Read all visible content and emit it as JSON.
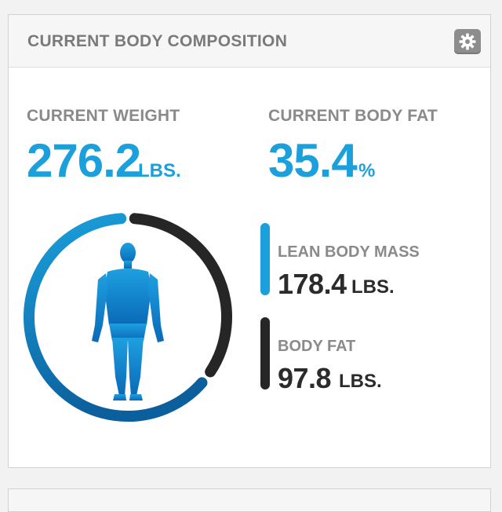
{
  "card": {
    "title": "CURRENT BODY COMPOSITION",
    "settings_icon": "gear-icon"
  },
  "current_weight": {
    "label": "CURRENT WEIGHT",
    "value": "276.2",
    "unit": "LBS."
  },
  "current_body_fat": {
    "label": "CURRENT BODY FAT",
    "value": "35.4",
    "unit": "%"
  },
  "lean_body_mass": {
    "label": "LEAN BODY MASS",
    "value": "178.4",
    "unit": "LBS."
  },
  "body_fat": {
    "label": "BODY FAT",
    "value": "97.8",
    "unit": "LBS."
  },
  "ring_chart": {
    "lean_fraction": 0.646,
    "fat_fraction": 0.354,
    "figure_icon": "human-figure-icon"
  },
  "colors": {
    "accent_blue": "#1ba0dc",
    "dark_segment": "#262626",
    "label_gray": "#8a8a8a"
  }
}
